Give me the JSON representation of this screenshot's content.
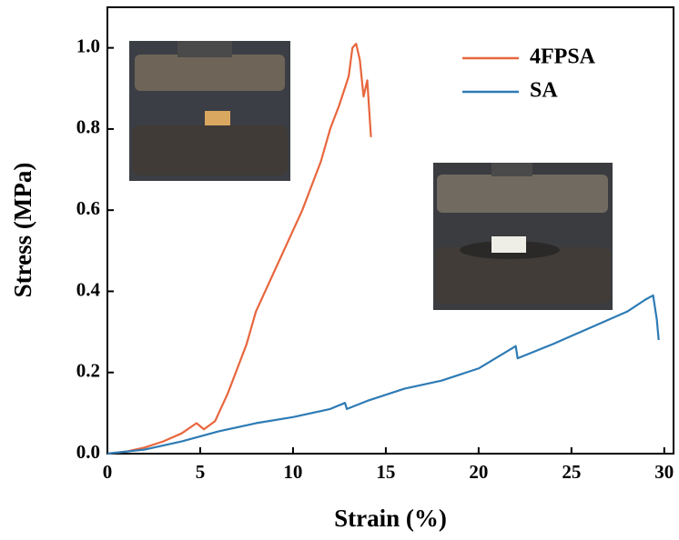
{
  "chart_data": {
    "type": "line",
    "xlabel": "Strain (%)",
    "ylabel": "Stress (MPa)",
    "xlim": [
      0,
      30.5
    ],
    "ylim": [
      0,
      1.1
    ],
    "xticks": [
      0,
      5,
      10,
      15,
      20,
      25,
      30
    ],
    "yticks": [
      {
        "value": 0,
        "label": "0.0"
      },
      {
        "value": 0.2,
        "label": "0.2"
      },
      {
        "value": 0.4,
        "label": "0.4"
      },
      {
        "value": 0.6,
        "label": "0.6"
      },
      {
        "value": 0.8,
        "label": "0.8"
      },
      {
        "value": 1.0,
        "label": "1.0"
      }
    ],
    "legend": "upper right",
    "series": [
      {
        "name": "4FPSA",
        "color": "#e8663d",
        "x": [
          0,
          1,
          2,
          3,
          4,
          4.8,
          5.2,
          5.8,
          6.5,
          7,
          7.5,
          8,
          8.5,
          9,
          9.5,
          10,
          10.5,
          11,
          11.5,
          12,
          12.5,
          13,
          13.2,
          13.4,
          13.6,
          13.8,
          14,
          14.2
        ],
        "values": [
          0,
          0.005,
          0.015,
          0.03,
          0.05,
          0.075,
          0.06,
          0.08,
          0.15,
          0.21,
          0.27,
          0.35,
          0.4,
          0.45,
          0.5,
          0.55,
          0.6,
          0.66,
          0.72,
          0.8,
          0.86,
          0.93,
          1.0,
          1.01,
          0.97,
          0.88,
          0.92,
          0.78
        ]
      },
      {
        "name": "SA",
        "color": "#2e7bb5",
        "x": [
          0,
          2,
          4,
          6,
          8,
          10,
          12,
          12.8,
          12.9,
          14,
          16,
          18,
          20,
          22,
          22.1,
          24,
          26,
          28,
          29,
          29.4,
          29.6,
          29.7
        ],
        "values": [
          0,
          0.01,
          0.03,
          0.055,
          0.075,
          0.09,
          0.11,
          0.125,
          0.11,
          0.13,
          0.16,
          0.18,
          0.21,
          0.265,
          0.235,
          0.27,
          0.31,
          0.35,
          0.38,
          0.39,
          0.33,
          0.28
        ]
      }
    ]
  }
}
